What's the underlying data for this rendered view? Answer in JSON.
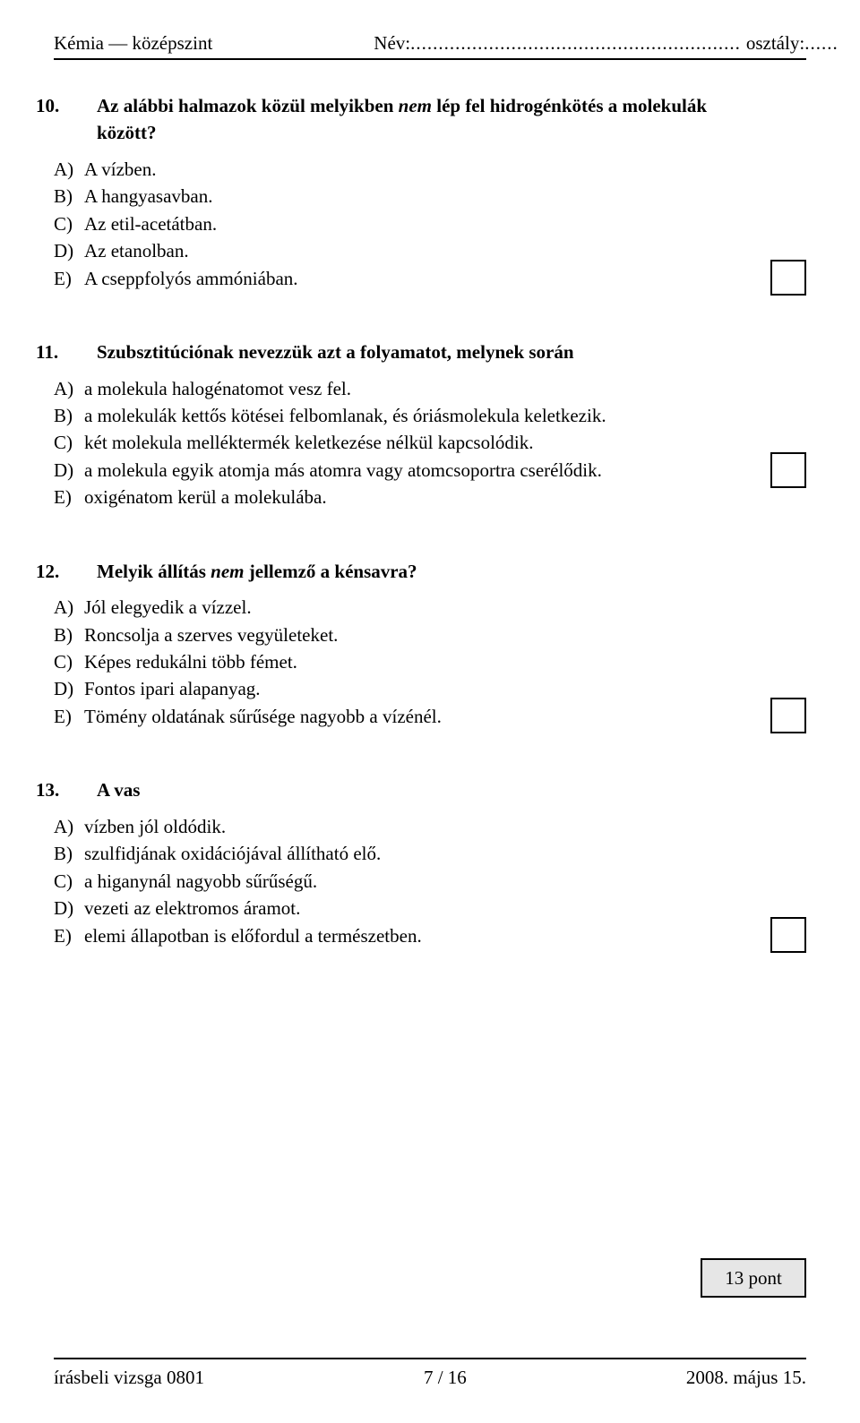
{
  "header": {
    "subject_level": "Kémia — középszint",
    "name_label": "Név:",
    "name_dots": "...........................................................",
    "class_label": " osztály:",
    "class_dots": "......"
  },
  "questions": {
    "q10": {
      "num": "10.",
      "text_a": "Az alábbi halmazok közül melyikben ",
      "text_italic": "nem",
      "text_b": " lép fel hidrogénkötés a molekulák között?",
      "options": [
        {
          "letter": "A)",
          "text": "A vízben."
        },
        {
          "letter": "B)",
          "text": "A hangyasavban."
        },
        {
          "letter": "C)",
          "text": "Az etil-acetátban."
        },
        {
          "letter": "D)",
          "text": "Az etanolban."
        },
        {
          "letter": "E)",
          "text": "A cseppfolyós ammóniában."
        }
      ]
    },
    "q11": {
      "num": "11.",
      "text": "Szubsztitúciónak nevezzük azt a folyamatot, melynek során",
      "options": [
        {
          "letter": "A)",
          "text": "a molekula halogénatomot vesz fel."
        },
        {
          "letter": "B)",
          "text": "a molekulák kettős kötései felbomlanak, és óriásmolekula keletkezik."
        },
        {
          "letter": "C)",
          "text": "két molekula melléktermék keletkezése nélkül kapcsolódik."
        },
        {
          "letter": "D)",
          "text": "a molekula egyik atomja más atomra vagy atomcsoportra cserélődik."
        },
        {
          "letter": "E)",
          "text": "oxigénatom kerül a molekulába."
        }
      ]
    },
    "q12": {
      "num": "12.",
      "text_a": "Melyik állítás ",
      "text_italic": "nem",
      "text_b": " jellemző a kénsavra?",
      "options": [
        {
          "letter": "A)",
          "text": "Jól elegyedik a vízzel."
        },
        {
          "letter": "B)",
          "text": "Roncsolja a szerves vegyületeket."
        },
        {
          "letter": "C)",
          "text": "Képes redukálni több fémet."
        },
        {
          "letter": "D)",
          "text": "Fontos ipari alapanyag."
        },
        {
          "letter": "E)",
          "text": "Tömény oldatának sűrűsége nagyobb a vízénél."
        }
      ]
    },
    "q13": {
      "num": "13.",
      "text": "A vas",
      "options": [
        {
          "letter": "A)",
          "text": "vízben jól oldódik."
        },
        {
          "letter": "B)",
          "text": "szulfidjának oxidációjával állítható elő."
        },
        {
          "letter": "C)",
          "text": "a higanynál nagyobb sűrűségű."
        },
        {
          "letter": "D)",
          "text": "vezeti az elektromos áramot."
        },
        {
          "letter": "E)",
          "text": "elemi állapotban is előfordul a természetben."
        }
      ]
    }
  },
  "score": {
    "text": "13 pont"
  },
  "footer": {
    "left": "írásbeli vizsga 0801",
    "center": "7 / 16",
    "right": "2008. május 15."
  }
}
